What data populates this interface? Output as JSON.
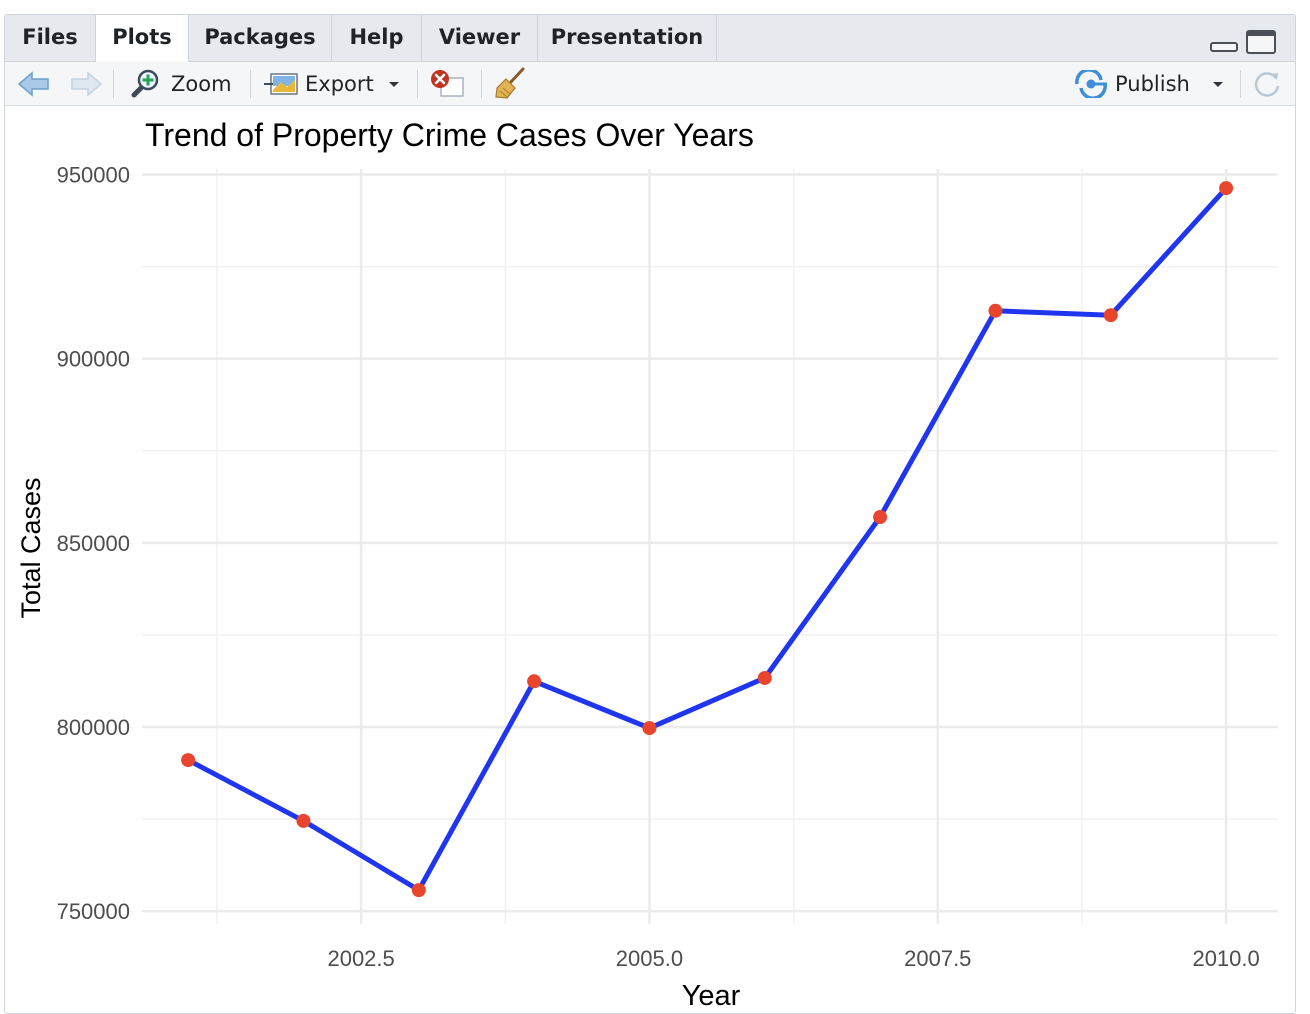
{
  "tabs": [
    {
      "label": "Files",
      "active": false
    },
    {
      "label": "Plots",
      "active": true
    },
    {
      "label": "Packages",
      "active": false
    },
    {
      "label": "Help",
      "active": false
    },
    {
      "label": "Viewer",
      "active": false
    },
    {
      "label": "Presentation",
      "active": false
    }
  ],
  "toolbar": {
    "zoom_label": "Zoom",
    "export_label": "Export",
    "publish_label": "Publish",
    "icons": [
      "back-arrow-icon",
      "forward-arrow-icon",
      "zoom-icon",
      "export-icon",
      "remove-plot-icon",
      "broom-icon",
      "publish-icon",
      "refresh-icon"
    ]
  },
  "colors": {
    "line": "#1f35ee",
    "point": "#e8452f",
    "grid": "#ebebeb"
  },
  "chart_data": {
    "type": "line",
    "title": "Trend of Property Crime Cases Over Years",
    "xlabel": "Year",
    "ylabel": "Total Cases",
    "x": [
      2001,
      2002,
      2003,
      2004,
      2005,
      2006,
      2007,
      2008,
      2009,
      2010
    ],
    "series": [
      {
        "values": [
          791000,
          774500,
          755700,
          812400,
          799700,
          813300,
          857000,
          913000,
          911800,
          946300
        ]
      }
    ],
    "xlim": [
      2000.6,
      2010.45
    ],
    "ylim": [
      746500,
      951500
    ],
    "xticks": [
      2002.5,
      2005.0,
      2007.5,
      2010.0
    ],
    "xtick_labels": [
      "2002.5",
      "2005.0",
      "2007.5",
      "2010.0"
    ],
    "yticks": [
      750000,
      800000,
      850000,
      900000,
      950000
    ],
    "ytick_labels": [
      "750000",
      "800000",
      "850000",
      "900000",
      "950000"
    ],
    "grid": true,
    "legend": "none"
  }
}
